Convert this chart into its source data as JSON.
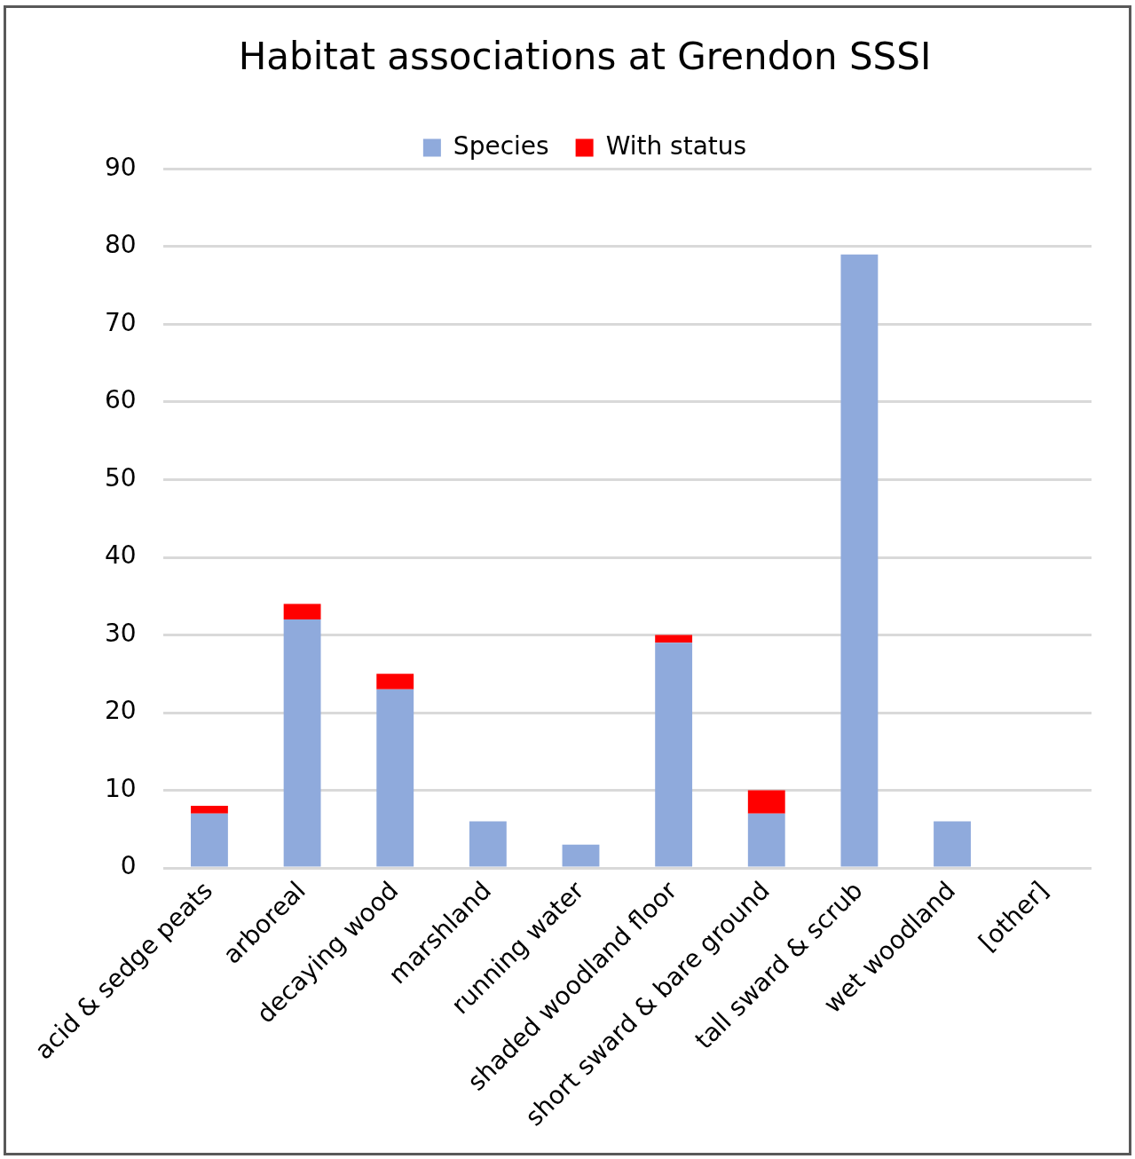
{
  "chart_data": {
    "type": "bar",
    "title": "Habitat associations at Grendon SSSI",
    "categories": [
      "acid & sedge peats",
      "arboreal",
      "decaying wood",
      "marshland",
      "running water",
      "shaded woodland floor",
      "short sward & bare ground",
      "tall sward & scrub",
      "wet woodland",
      "[other]"
    ],
    "series": [
      {
        "name": "Species",
        "color": "#8faadc",
        "values": [
          7,
          32,
          23,
          6,
          3,
          29,
          7,
          79,
          6,
          0
        ]
      },
      {
        "name": "With status",
        "color": "#ff0000",
        "values": [
          1,
          2,
          2,
          0,
          0,
          1,
          3,
          0,
          0,
          0
        ]
      }
    ],
    "stacked": true,
    "ylim": [
      0,
      90
    ],
    "yticks": [
      0,
      10,
      20,
      30,
      40,
      50,
      60,
      70,
      80,
      90
    ],
    "grid": "y",
    "legend": "top"
  }
}
